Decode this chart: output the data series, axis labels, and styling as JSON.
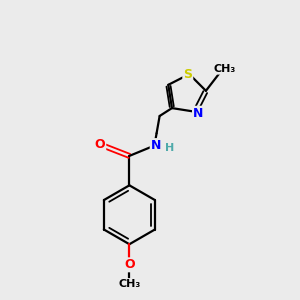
{
  "bg_color": "#ebebeb",
  "bond_color": "#000000",
  "atom_colors": {
    "O": "#ff0000",
    "N": "#0000ff",
    "S": "#cccc00",
    "H": "#4faaaa",
    "C": "#000000"
  }
}
